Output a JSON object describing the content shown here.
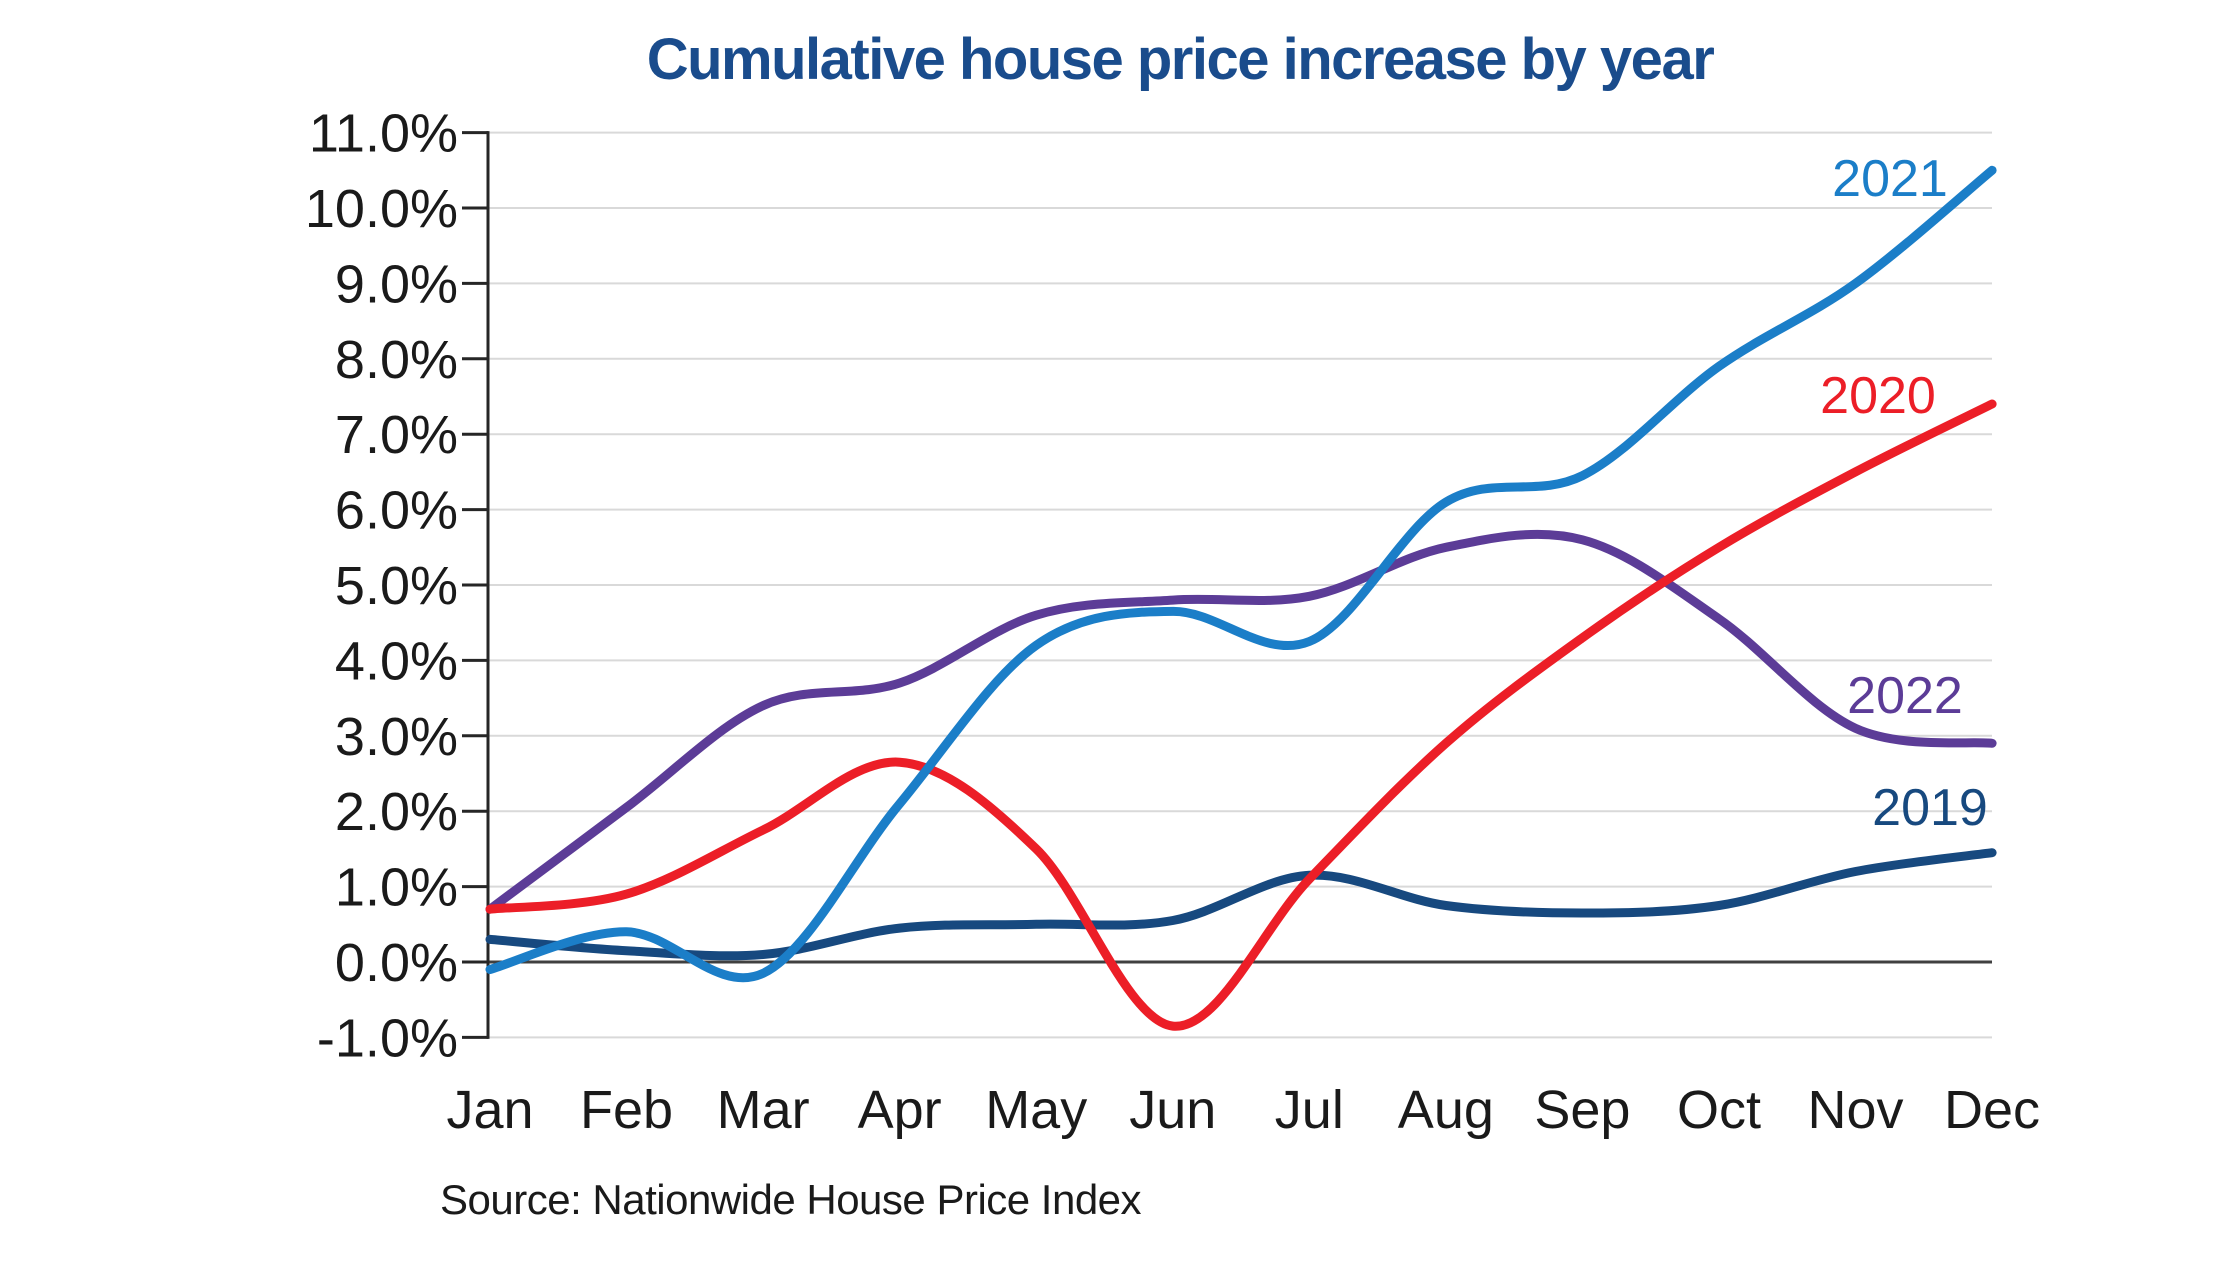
{
  "title": "Cumulative house price increase by year",
  "title_color": "#1A4C8C",
  "source": "Source: Nationwide House Price Index",
  "chart_data": {
    "type": "line",
    "x": [
      "Jan",
      "Feb",
      "Mar",
      "Apr",
      "May",
      "Jun",
      "Jul",
      "Aug",
      "Sep",
      "Oct",
      "Nov",
      "Dec"
    ],
    "y_ticks": [
      "11.0%",
      "10.0%",
      "9.0%",
      "8.0%",
      "7.0%",
      "6.0%",
      "5.0%",
      "4.0%",
      "3.0%",
      "2.0%",
      "1.0%",
      "0.0%",
      "-1.0%"
    ],
    "y_tick_values": [
      11,
      10,
      9,
      8,
      7,
      6,
      5,
      4,
      3,
      2,
      1,
      0,
      -1
    ],
    "ylim": [
      -1,
      11
    ],
    "grid": true,
    "gridline_color": "#D9D9D9",
    "zero_line_color": "#404040",
    "axis_color": "#262626",
    "legend_position": "end-of-line labels, right side",
    "series": [
      {
        "name": "2019",
        "color": "#17497F",
        "values": [
          0.3,
          0.15,
          0.1,
          0.45,
          0.5,
          0.55,
          1.15,
          0.75,
          0.65,
          0.75,
          1.2,
          1.45
        ]
      },
      {
        "name": "2022",
        "color": "#5C3C97",
        "values": [
          0.7,
          2.05,
          3.4,
          3.7,
          4.6,
          4.8,
          4.85,
          5.5,
          5.6,
          4.55,
          3.1,
          2.9
        ]
      },
      {
        "name": "2020",
        "color": "#EC1E27",
        "values": [
          0.7,
          0.9,
          1.75,
          2.65,
          1.5,
          -0.85,
          1.1,
          2.9,
          4.3,
          5.5,
          6.5,
          7.4
        ]
      },
      {
        "name": "2021",
        "color": "#1B7EC8",
        "values": [
          -0.1,
          0.4,
          -0.15,
          2.1,
          4.2,
          4.65,
          4.25,
          6.1,
          6.45,
          7.9,
          9.0,
          10.5
        ]
      }
    ]
  }
}
